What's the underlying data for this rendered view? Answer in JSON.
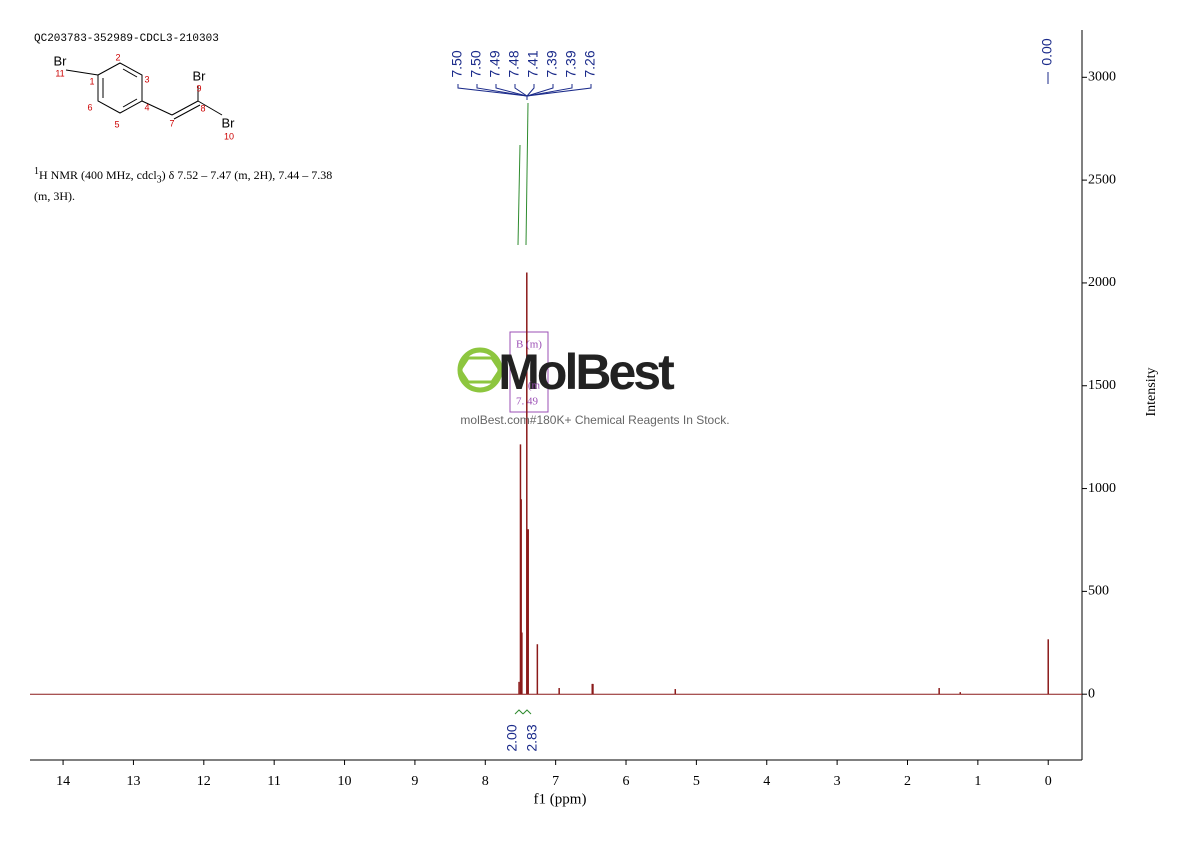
{
  "chart_data": {
    "type": "nmr",
    "title": "QC203783-352989-CDCL3-210303",
    "description": [
      "1",
      "H NMR (400 MHz, cdcl",
      "3",
      ") δ 7.52 – 7.47 (m, 2H), 7.44 – 7.38",
      "(m, 3H)."
    ],
    "structure": [
      "Br",
      "11",
      "1",
      "2",
      "3",
      "4",
      "5",
      "6",
      "7",
      "8",
      "9",
      "Br",
      "Br",
      "10"
    ],
    "xlabel": "f1 (ppm)",
    "ylabel": "Intensity",
    "peaks": {
      "color": "#8b1a1a",
      "x": [
        7.52,
        7.5,
        7.49,
        7.48,
        7.41,
        7.39,
        7.26,
        6.95,
        6.48,
        6.47,
        5.3,
        1.55,
        1.25,
        0.0
      ],
      "values": [
        60,
        1215,
        948,
        300,
        2051,
        802,
        243,
        30,
        50,
        50,
        25,
        30,
        10,
        267
      ]
    },
    "peak_labels": [
      "7.50",
      "7.50",
      "7.49",
      "7.48",
      "7.41",
      "7.39",
      "7.39",
      "7.26"
    ],
    "tms_label": "0.00",
    "integrals": {
      "color": "#2e8b2e",
      "values": [
        2.0,
        2.83
      ],
      "value_labels": [
        "2.00",
        "2.83"
      ]
    },
    "multiplet_labels": [
      "B (m)",
      "(m",
      "7. 49"
    ],
    "watermark": "MolBest",
    "watermark_subtitle": "molBest.com#180K+ Chemical Reagents In Stock.",
    "xlim": [
      14.47,
      -0.48
    ],
    "xticks": [
      14,
      13,
      12,
      11,
      10,
      9,
      8,
      7,
      6,
      5,
      4,
      3,
      2,
      1,
      0
    ],
    "ylim": [
      -320,
      3230
    ],
    "yticks": [
      0,
      500,
      1000,
      1500,
      2000,
      2500,
      3000
    ]
  }
}
